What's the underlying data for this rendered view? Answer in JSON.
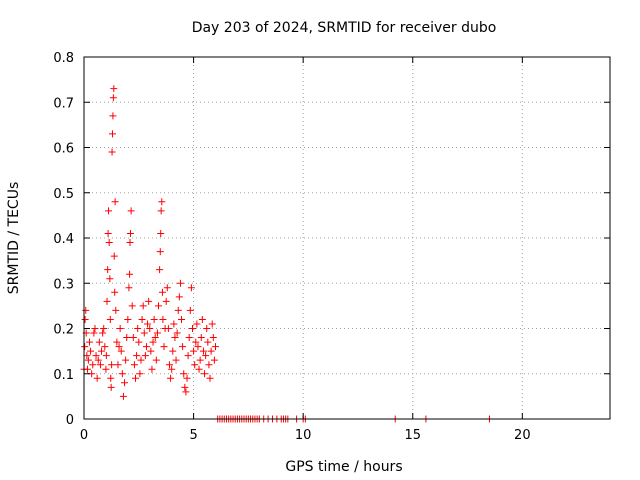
{
  "chart_data": {
    "type": "scatter",
    "title": "Day 203 of 2024, SRMTID for receiver dubo",
    "xlabel": "GPS time / hours",
    "ylabel": "SRMTID / TECUs",
    "xlim": [
      0,
      24
    ],
    "ylim": [
      0,
      0.8
    ],
    "grid": true,
    "marker": "+",
    "color": "#ff0000",
    "x_ticks": [
      0,
      5,
      10,
      15,
      20
    ],
    "x_tick_labels": [
      "0",
      "5",
      "10",
      "15",
      "20"
    ],
    "y_ticks": [
      0,
      0.1,
      0.2,
      0.3,
      0.4,
      0.5,
      0.6,
      0.7,
      0.8
    ],
    "y_tick_labels": [
      "0",
      "0.1",
      "0.2",
      "0.3",
      "0.4",
      "0.5",
      "0.6",
      "0.7",
      "0.8"
    ],
    "series": [
      {
        "name": "SRMTID",
        "points": [
          [
            0.0,
            0.11
          ],
          [
            0.03,
            0.16
          ],
          [
            0.05,
            0.22
          ],
          [
            0.08,
            0.24
          ],
          [
            0.1,
            0.19
          ],
          [
            0.13,
            0.14
          ],
          [
            0.16,
            0.11
          ],
          [
            0.2,
            0.13
          ],
          [
            0.25,
            0.17
          ],
          [
            0.3,
            0.15
          ],
          [
            0.35,
            0.1
          ],
          [
            0.4,
            0.12
          ],
          [
            0.45,
            0.19
          ],
          [
            0.5,
            0.2
          ],
          [
            0.55,
            0.14
          ],
          [
            0.6,
            0.09
          ],
          [
            0.65,
            0.13
          ],
          [
            0.7,
            0.17
          ],
          [
            0.75,
            0.12
          ],
          [
            0.8,
            0.15
          ],
          [
            0.85,
            0.19
          ],
          [
            0.9,
            0.2
          ],
          [
            0.95,
            0.16
          ],
          [
            1.0,
            0.11
          ],
          [
            1.02,
            0.14
          ],
          [
            1.05,
            0.26
          ],
          [
            1.08,
            0.33
          ],
          [
            1.1,
            0.41
          ],
          [
            1.12,
            0.46
          ],
          [
            1.15,
            0.39
          ],
          [
            1.18,
            0.31
          ],
          [
            1.2,
            0.22
          ],
          [
            1.22,
            0.09
          ],
          [
            1.24,
            0.07
          ],
          [
            1.26,
            0.12
          ],
          [
            1.28,
            0.59
          ],
          [
            1.3,
            0.63
          ],
          [
            1.32,
            0.67
          ],
          [
            1.34,
            0.71
          ],
          [
            1.36,
            0.73
          ],
          [
            1.38,
            0.36
          ],
          [
            1.4,
            0.28
          ],
          [
            1.42,
            0.48
          ],
          [
            1.45,
            0.24
          ],
          [
            1.5,
            0.17
          ],
          [
            1.55,
            0.12
          ],
          [
            1.6,
            0.16
          ],
          [
            1.65,
            0.2
          ],
          [
            1.7,
            0.15
          ],
          [
            1.75,
            0.1
          ],
          [
            1.8,
            0.05
          ],
          [
            1.85,
            0.08
          ],
          [
            1.9,
            0.13
          ],
          [
            1.95,
            0.18
          ],
          [
            2.0,
            0.22
          ],
          [
            2.05,
            0.29
          ],
          [
            2.08,
            0.32
          ],
          [
            2.1,
            0.39
          ],
          [
            2.12,
            0.41
          ],
          [
            2.15,
            0.46
          ],
          [
            2.2,
            0.25
          ],
          [
            2.25,
            0.18
          ],
          [
            2.3,
            0.12
          ],
          [
            2.35,
            0.09
          ],
          [
            2.4,
            0.14
          ],
          [
            2.45,
            0.2
          ],
          [
            2.5,
            0.17
          ],
          [
            2.55,
            0.1
          ],
          [
            2.6,
            0.13
          ],
          [
            2.65,
            0.22
          ],
          [
            2.7,
            0.25
          ],
          [
            2.75,
            0.19
          ],
          [
            2.8,
            0.14
          ],
          [
            2.85,
            0.16
          ],
          [
            2.9,
            0.21
          ],
          [
            2.95,
            0.26
          ],
          [
            3.0,
            0.2
          ],
          [
            3.05,
            0.15
          ],
          [
            3.1,
            0.11
          ],
          [
            3.15,
            0.17
          ],
          [
            3.2,
            0.22
          ],
          [
            3.25,
            0.18
          ],
          [
            3.3,
            0.13
          ],
          [
            3.35,
            0.19
          ],
          [
            3.4,
            0.25
          ],
          [
            3.45,
            0.33
          ],
          [
            3.48,
            0.37
          ],
          [
            3.5,
            0.41
          ],
          [
            3.52,
            0.46
          ],
          [
            3.55,
            0.48
          ],
          [
            3.58,
            0.28
          ],
          [
            3.6,
            0.22
          ],
          [
            3.65,
            0.16
          ],
          [
            3.7,
            0.2
          ],
          [
            3.75,
            0.26
          ],
          [
            3.8,
            0.29
          ],
          [
            3.85,
            0.2
          ],
          [
            3.9,
            0.12
          ],
          [
            3.95,
            0.09
          ],
          [
            4.0,
            0.11
          ],
          [
            4.05,
            0.15
          ],
          [
            4.1,
            0.21
          ],
          [
            4.15,
            0.18
          ],
          [
            4.2,
            0.13
          ],
          [
            4.25,
            0.19
          ],
          [
            4.3,
            0.24
          ],
          [
            4.35,
            0.27
          ],
          [
            4.4,
            0.3
          ],
          [
            4.45,
            0.22
          ],
          [
            4.5,
            0.16
          ],
          [
            4.55,
            0.1
          ],
          [
            4.6,
            0.07
          ],
          [
            4.65,
            0.06
          ],
          [
            4.7,
            0.09
          ],
          [
            4.75,
            0.14
          ],
          [
            4.8,
            0.18
          ],
          [
            4.85,
            0.24
          ],
          [
            4.9,
            0.29
          ],
          [
            4.95,
            0.2
          ],
          [
            5.0,
            0.15
          ],
          [
            5.05,
            0.12
          ],
          [
            5.1,
            0.17
          ],
          [
            5.15,
            0.21
          ],
          [
            5.2,
            0.16
          ],
          [
            5.25,
            0.11
          ],
          [
            5.3,
            0.13
          ],
          [
            5.35,
            0.18
          ],
          [
            5.4,
            0.22
          ],
          [
            5.45,
            0.15
          ],
          [
            5.5,
            0.1
          ],
          [
            5.55,
            0.14
          ],
          [
            5.6,
            0.2
          ],
          [
            5.65,
            0.17
          ],
          [
            5.7,
            0.12
          ],
          [
            5.75,
            0.09
          ],
          [
            5.8,
            0.15
          ],
          [
            5.85,
            0.21
          ],
          [
            5.9,
            0.18
          ],
          [
            5.95,
            0.13
          ],
          [
            6.0,
            0.16
          ],
          [
            6.1,
            0.0
          ],
          [
            6.2,
            0.0
          ],
          [
            6.3,
            0.0
          ],
          [
            6.4,
            0.0
          ],
          [
            6.5,
            0.0
          ],
          [
            6.6,
            0.0
          ],
          [
            6.7,
            0.0
          ],
          [
            6.8,
            0.0
          ],
          [
            6.9,
            0.0
          ],
          [
            7.0,
            0.0
          ],
          [
            7.1,
            0.0
          ],
          [
            7.2,
            0.0
          ],
          [
            7.3,
            0.0
          ],
          [
            7.4,
            0.0
          ],
          [
            7.5,
            0.0
          ],
          [
            7.6,
            0.0
          ],
          [
            7.7,
            0.0
          ],
          [
            7.8,
            0.0
          ],
          [
            7.9,
            0.0
          ],
          [
            8.0,
            0.0
          ],
          [
            8.2,
            0.0
          ],
          [
            8.4,
            0.0
          ],
          [
            8.6,
            0.0
          ],
          [
            8.8,
            0.0
          ],
          [
            9.0,
            0.0
          ],
          [
            9.1,
            0.0
          ],
          [
            9.2,
            0.0
          ],
          [
            9.3,
            0.0
          ],
          [
            9.7,
            0.0
          ],
          [
            10.0,
            0.0
          ],
          [
            10.1,
            0.0
          ],
          [
            14.2,
            0.0
          ],
          [
            15.6,
            0.0
          ],
          [
            18.5,
            0.0
          ]
        ]
      }
    ]
  }
}
